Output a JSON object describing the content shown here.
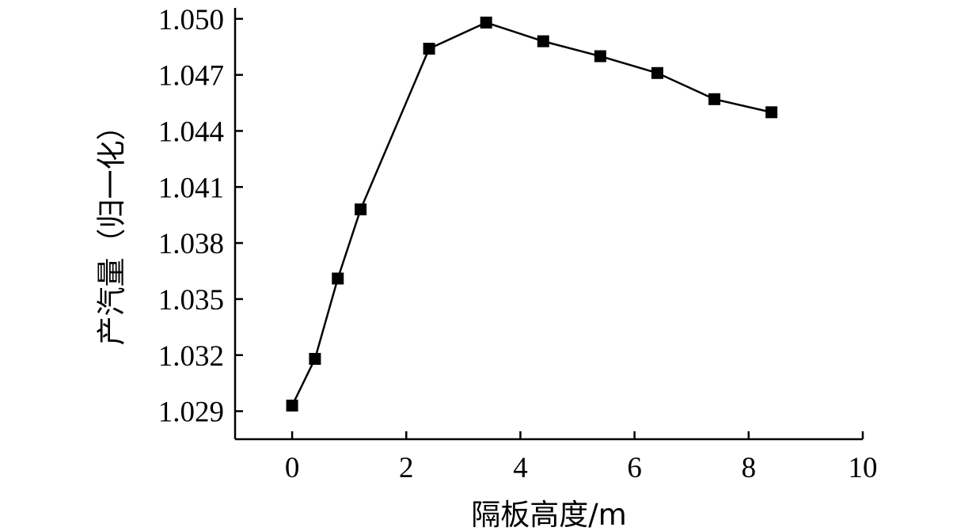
{
  "chart_data": {
    "type": "line",
    "xlabel": "隔板高度/m",
    "ylabel": "产汽量（归一化）",
    "xlim": [
      -1,
      10
    ],
    "ylim": [
      1.0275,
      1.0505
    ],
    "xticks": [
      0,
      2,
      4,
      6,
      8,
      10
    ],
    "xtick_labels": [
      "0",
      "2",
      "4",
      "6",
      "8",
      "10"
    ],
    "yticks": [
      1.029,
      1.032,
      1.035,
      1.038,
      1.041,
      1.044,
      1.047,
      1.05
    ],
    "ytick_labels": [
      "1.029",
      "1.032",
      "1.035",
      "1.038",
      "1.041",
      "1.044",
      "1.047",
      "1.050"
    ],
    "grid": false,
    "marker": "square",
    "colors": {
      "line": "#000000",
      "marker": "#000000"
    },
    "series": [
      {
        "x": [
          0.0,
          0.4,
          0.8,
          1.2,
          2.4,
          3.4,
          4.4,
          5.4,
          6.4,
          7.4,
          8.4
        ],
        "y": [
          1.0293,
          1.0318,
          1.0361,
          1.0398,
          1.0484,
          1.0498,
          1.0488,
          1.048,
          1.0471,
          1.0457,
          1.045
        ]
      }
    ]
  }
}
